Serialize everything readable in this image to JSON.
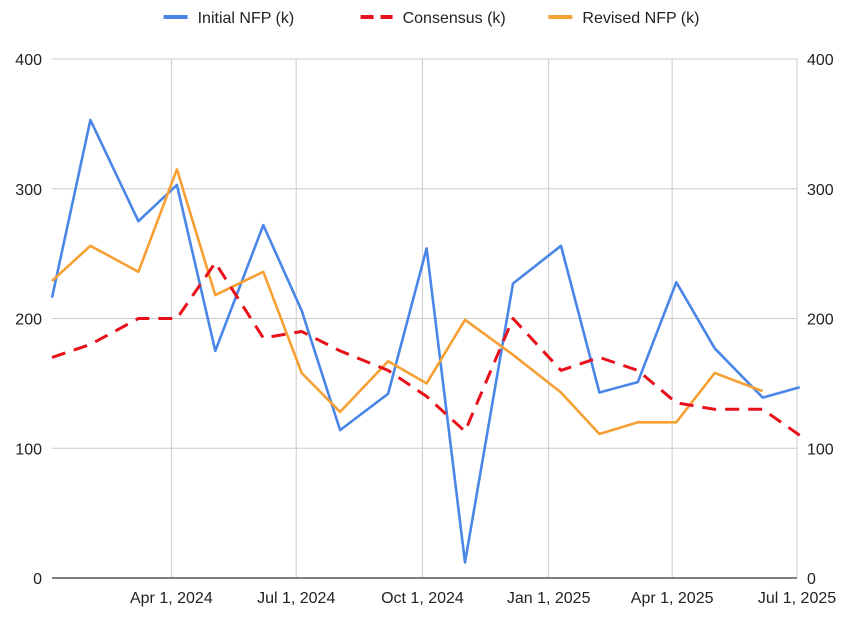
{
  "chart_data": {
    "type": "line",
    "title": "",
    "xlabel": "",
    "ylabel": "",
    "x_tick_labels": [
      "Apr 1, 2024",
      "Jul 1, 2024",
      "Oct 1, 2024",
      "Jan 1, 2025",
      "Apr 1, 2025",
      "Jul 1, 2025"
    ],
    "x_tick_dates": [
      "2024-04-01",
      "2024-07-01",
      "2024-10-01",
      "2025-01-01",
      "2025-04-01",
      "2025-07-01"
    ],
    "xlim": [
      "2024-01-05",
      "2025-07-01"
    ],
    "y_ticks": [
      0,
      100,
      200,
      300,
      400
    ],
    "ylim": [
      0,
      400
    ],
    "y_axis_right": true,
    "grid": true,
    "legend_position": "top",
    "series": [
      {
        "name": "Initial NFP (k)",
        "color": "#4a86e8",
        "dashed": false,
        "points": [
          [
            "2024-01-05",
            216
          ],
          [
            "2024-02-02",
            353
          ],
          [
            "2024-03-08",
            275
          ],
          [
            "2024-04-05",
            303
          ],
          [
            "2024-05-03",
            175
          ],
          [
            "2024-06-07",
            272
          ],
          [
            "2024-07-05",
            206
          ],
          [
            "2024-08-02",
            114
          ],
          [
            "2024-09-06",
            142
          ],
          [
            "2024-10-04",
            254
          ],
          [
            "2024-11-01",
            12
          ],
          [
            "2024-12-06",
            227
          ],
          [
            "2025-01-10",
            256
          ],
          [
            "2025-02-07",
            143
          ],
          [
            "2025-03-07",
            151
          ],
          [
            "2025-04-04",
            228
          ],
          [
            "2025-05-02",
            177
          ],
          [
            "2025-06-06",
            139
          ],
          [
            "2025-07-03",
            147
          ]
        ]
      },
      {
        "name": "Consensus (k)",
        "color": "#e8101a",
        "dashed": true,
        "points": [
          [
            "2024-01-05",
            170
          ],
          [
            "2024-02-02",
            180
          ],
          [
            "2024-03-08",
            200
          ],
          [
            "2024-04-05",
            200
          ],
          [
            "2024-05-03",
            243
          ],
          [
            "2024-06-07",
            185
          ],
          [
            "2024-07-05",
            190
          ],
          [
            "2024-08-02",
            175
          ],
          [
            "2024-09-06",
            160
          ],
          [
            "2024-10-04",
            140
          ],
          [
            "2024-11-01",
            113
          ],
          [
            "2024-12-06",
            200
          ],
          [
            "2025-01-10",
            160
          ],
          [
            "2025-02-07",
            170
          ],
          [
            "2025-03-07",
            160
          ],
          [
            "2025-04-04",
            135
          ],
          [
            "2025-05-02",
            130
          ],
          [
            "2025-06-06",
            130
          ],
          [
            "2025-07-03",
            110
          ]
        ]
      },
      {
        "name": "Revised NFP (k)",
        "color": "#f6a034",
        "dashed": false,
        "points": [
          [
            "2024-01-05",
            229
          ],
          [
            "2024-02-02",
            256
          ],
          [
            "2024-03-08",
            236
          ],
          [
            "2024-04-05",
            315
          ],
          [
            "2024-05-03",
            218
          ],
          [
            "2024-06-07",
            236
          ],
          [
            "2024-07-05",
            158
          ],
          [
            "2024-08-02",
            128
          ],
          [
            "2024-09-06",
            167
          ],
          [
            "2024-10-04",
            150
          ],
          [
            "2024-11-01",
            199
          ],
          [
            "2024-12-06",
            172
          ],
          [
            "2025-01-10",
            143
          ],
          [
            "2025-02-07",
            111
          ],
          [
            "2025-03-07",
            120
          ],
          [
            "2025-04-04",
            120
          ],
          [
            "2025-05-02",
            158
          ],
          [
            "2025-06-06",
            144
          ]
        ]
      }
    ]
  }
}
